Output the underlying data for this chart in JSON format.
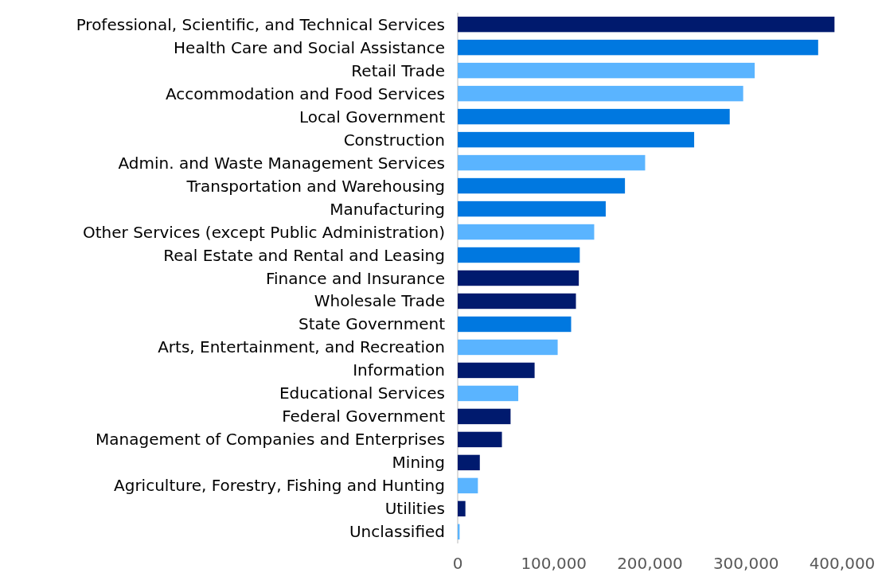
{
  "chart_data": {
    "type": "bar",
    "orientation": "horizontal",
    "categories": [
      "Professional, Scientific, and Technical Services",
      "Health Care and Social Assistance",
      "Retail Trade",
      "Accommodation and Food Services",
      "Local Government",
      "Construction",
      "Admin. and Waste Management Services",
      "Transportation and Warehousing",
      "Manufacturing",
      "Other Services (except Public Administration)",
      "Real Estate and Rental and Leasing",
      "Finance and Insurance",
      "Wholesale Trade",
      "State Government",
      "Arts, Entertainment, and Recreation",
      "Information",
      "Educational Services",
      "Federal Government",
      "Management of Companies and Enterprises",
      "Mining",
      "Agriculture, Forestry, Fishing and Hunting",
      "Utilities",
      "Unclassified"
    ],
    "values": [
      392000,
      375000,
      309000,
      297000,
      283000,
      246000,
      195000,
      174000,
      154000,
      142000,
      127000,
      126000,
      123000,
      118000,
      104000,
      80000,
      63000,
      55000,
      46000,
      23000,
      21000,
      8000,
      2000
    ],
    "colors": [
      "#001a6e",
      "#0078e0",
      "#5ab4ff",
      "#5ab4ff",
      "#0078e0",
      "#0078e0",
      "#5ab4ff",
      "#0078e0",
      "#0078e0",
      "#5ab4ff",
      "#0078e0",
      "#001a6e",
      "#001a6e",
      "#0078e0",
      "#5ab4ff",
      "#001a6e",
      "#5ab4ff",
      "#001a6e",
      "#001a6e",
      "#001a6e",
      "#5ab4ff",
      "#001a6e",
      "#5ab4ff"
    ],
    "xlim": [
      0,
      400000
    ],
    "xticks": [
      0,
      {
        "value": 100000,
        "label": "100,000"
      },
      {
        "value": 200000,
        "label": "200,000"
      },
      {
        "value": 300000,
        "label": "300,000"
      },
      {
        "value": 400000,
        "label": "400,000"
      }
    ],
    "grid": false
  }
}
